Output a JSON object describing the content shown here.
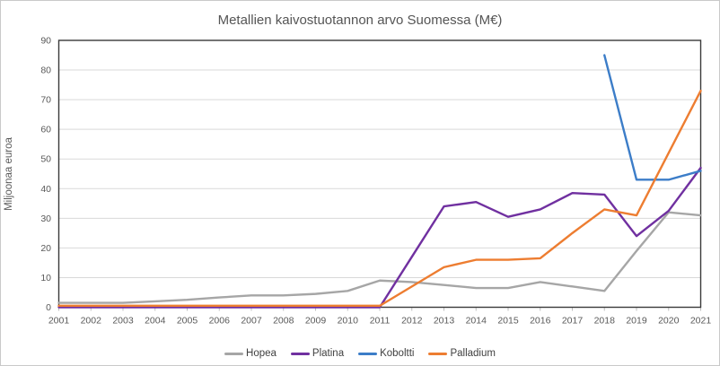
{
  "chart_data": {
    "type": "line",
    "title": "Metallien kaivostuotannon arvo Suomessa (M€)",
    "xlabel": "",
    "ylabel": "Miljoonaa euroa",
    "x": [
      2001,
      2002,
      2003,
      2004,
      2005,
      2006,
      2007,
      2008,
      2009,
      2010,
      2011,
      2012,
      2013,
      2014,
      2015,
      2016,
      2017,
      2018,
      2019,
      2020,
      2021
    ],
    "series": [
      {
        "name": "Hopea",
        "color": "#a6a6a6",
        "values": [
          1.5,
          1.5,
          1.5,
          2,
          2.5,
          3.3,
          4,
          4,
          4.5,
          5.5,
          9,
          8.5,
          7.5,
          6.5,
          6.5,
          8.5,
          7,
          5.5,
          19,
          32,
          31
        ]
      },
      {
        "name": "Platina",
        "color": "#7030a0",
        "values": [
          0,
          0,
          0,
          0,
          0,
          0,
          0,
          0,
          0,
          0,
          0,
          17,
          34,
          35.5,
          30.5,
          33,
          38.5,
          38,
          24,
          32.5,
          47
        ]
      },
      {
        "name": "Koboltti",
        "color": "#3c7dc8",
        "values": [
          null,
          null,
          null,
          null,
          null,
          null,
          null,
          null,
          null,
          null,
          null,
          null,
          null,
          null,
          null,
          null,
          null,
          85,
          43,
          43,
          46
        ]
      },
      {
        "name": "Palladium",
        "color": "#ed7d31",
        "values": [
          0.5,
          0.5,
          0.5,
          0.5,
          0.5,
          0.5,
          0.5,
          0.5,
          0.5,
          0.5,
          0.5,
          7,
          13.5,
          16,
          16,
          16.5,
          25,
          33,
          31,
          52,
          73
        ]
      }
    ],
    "ylim": [
      0,
      90
    ],
    "ytick_step": 10,
    "grid": "horizontal",
    "legend_position": "bottom",
    "colors": {
      "gridline": "#d9d9d9",
      "plot_border": "#3a3a3a",
      "tick_mark": "#bfbfbf",
      "tick_text": "#595959",
      "title_text": "#555555"
    }
  }
}
